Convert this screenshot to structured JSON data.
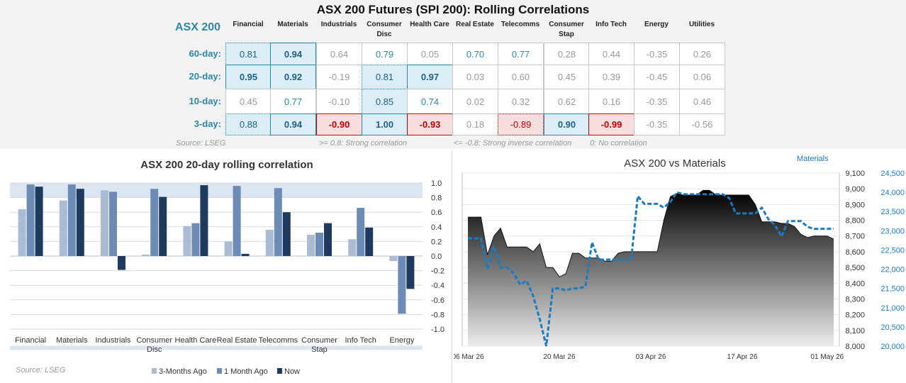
{
  "header": {
    "title": "ASX 200 Futures (SPI 200): Rolling Correlations",
    "index_label": "ASX 200",
    "columns": [
      {
        "line1": "Financial",
        "line2": ""
      },
      {
        "line1": "Materials",
        "line2": ""
      },
      {
        "line1": "Industrials",
        "line2": ""
      },
      {
        "line1": "Consumer",
        "line2": "Disc"
      },
      {
        "line1": "Health Care",
        "line2": ""
      },
      {
        "line1": "Real Estate",
        "line2": ""
      },
      {
        "line1": "Telecomms",
        "line2": ""
      },
      {
        "line1": "Consumer",
        "line2": "Stap"
      },
      {
        "line1": "Info Tech",
        "line2": ""
      },
      {
        "line1": "Energy",
        "line2": ""
      },
      {
        "line1": "Utilities",
        "line2": ""
      }
    ],
    "rows": [
      {
        "label": "60-day:",
        "values": [
          "0.81",
          "0.94",
          "0.64",
          "0.79",
          "0.05",
          "0.70",
          "0.77",
          "0.28",
          "0.44",
          "-0.35",
          "0.26"
        ]
      },
      {
        "label": "20-day:",
        "values": [
          "0.95",
          "0.92",
          "-0.19",
          "0.81",
          "0.97",
          "0.03",
          "0.60",
          "0.45",
          "0.39",
          "-0.45",
          "0.06"
        ]
      },
      {
        "label": "10-day:",
        "values": [
          "0.45",
          "0.77",
          "-0.10",
          "0.85",
          "0.74",
          "0.02",
          "0.32",
          "0.62",
          "0.16",
          "-0.35",
          "0.46"
        ]
      },
      {
        "label": "3-day:",
        "values": [
          "0.88",
          "0.94",
          "-0.90",
          "1.00",
          "-0.93",
          "0.18",
          "-0.89",
          "0.90",
          "-0.99",
          "-0.35",
          "-0.56"
        ]
      }
    ],
    "source": "Source: LSEG",
    "legend_strong": ">= 0.8:  Strong correlation",
    "legend_inverse": "<= -0.8:  Strong inverse correlation",
    "legend_none": "0:  No correlation",
    "colors": {
      "accent": "#2e86a8",
      "strong_fill": "#dbeef8",
      "inverse_fill": "#f8dede",
      "inverse_text": "#c00000"
    }
  },
  "chart_data": [
    {
      "type": "bar",
      "title": "ASX 200 20-day rolling correlation",
      "categories": [
        {
          "line1": "Financial",
          "line2": ""
        },
        {
          "line1": "Materials",
          "line2": ""
        },
        {
          "line1": "Industrials",
          "line2": ""
        },
        {
          "line1": "Consumer",
          "line2": "Disc"
        },
        {
          "line1": "Health Care",
          "line2": ""
        },
        {
          "line1": "Real Estate",
          "line2": ""
        },
        {
          "line1": "Telecomms",
          "line2": ""
        },
        {
          "line1": "Consumer",
          "line2": "Stap"
        },
        {
          "line1": "Info Tech",
          "line2": ""
        },
        {
          "line1": "Energy",
          "line2": ""
        }
      ],
      "series": [
        {
          "name": "3-Months Ago",
          "color": "#a9bcd3",
          "values": [
            0.64,
            0.76,
            0.9,
            0.02,
            0.41,
            0.2,
            0.36,
            0.29,
            0.23,
            -0.07
          ]
        },
        {
          "name": "1 Month Ago",
          "color": "#6c8cb5",
          "values": [
            0.98,
            0.98,
            0.88,
            0.92,
            0.45,
            0.96,
            0.93,
            0.32,
            0.66,
            -0.79
          ]
        },
        {
          "name": "Now",
          "color": "#1f3a5f",
          "values": [
            0.95,
            0.92,
            -0.19,
            0.81,
            0.97,
            0.03,
            0.6,
            0.45,
            0.39,
            -0.45
          ]
        }
      ],
      "ylim": [
        -1.0,
        1.0
      ],
      "yticks": [
        "1.0",
        "0.8",
        "0.6",
        "0.4",
        "0.2",
        "0.0",
        "-0.2",
        "-0.4",
        "-0.6",
        "-0.8",
        "-1.0"
      ],
      "source": "Source: LSEG",
      "legend": "bottom"
    },
    {
      "type": "area",
      "title": "ASX 200 vs Materials",
      "series_label": "Materials",
      "x_ticks": [
        "06 Mar 26",
        "20 Mar 26",
        "03 Apr 26",
        "17 Apr 26",
        "01 May 26"
      ],
      "left_axis": {
        "range": [
          8000,
          9100
        ],
        "ticks": [
          "9,100",
          "9,000",
          "8,900",
          "8,800",
          "8,700",
          "8,600",
          "8,500",
          "8,400",
          "8,300",
          "8,200",
          "8,100",
          "8,000"
        ]
      },
      "right_axis": {
        "range": [
          20000,
          24500
        ],
        "ticks": [
          "24,500",
          "24,000",
          "23,500",
          "23,000",
          "22,500",
          "22,000",
          "21,500",
          "21,000",
          "20,500",
          "20,000"
        ]
      },
      "asx200": [
        8820,
        8820,
        8820,
        8580,
        8700,
        8750,
        8630,
        8630,
        8630,
        8630,
        8600,
        8650,
        8500,
        8500,
        8440,
        8460,
        8590,
        8590,
        8560,
        8560,
        8560,
        8540,
        8540,
        8590,
        8600,
        8600,
        8600,
        8600,
        8600,
        8600,
        8800,
        8950,
        8970,
        8960,
        8960,
        8960,
        8990,
        8990,
        8960,
        8960,
        8960,
        8960,
        8960,
        8960,
        8900,
        8790,
        8790,
        8790,
        8780,
        8780,
        8760,
        8710,
        8690,
        8700,
        8700,
        8700,
        8680
      ],
      "materials": [
        22800,
        22800,
        22800,
        22000,
        22600,
        22050,
        22050,
        21900,
        21600,
        21700,
        21300,
        20700,
        20000,
        21500,
        21500,
        21450,
        21500,
        21500,
        21550,
        22700,
        22250,
        22250,
        22250,
        22250,
        22250,
        22250,
        23900,
        23700,
        23700,
        23700,
        23600,
        23750,
        24000,
        23950,
        23950,
        23950,
        23950,
        23950,
        23950,
        23950,
        23850,
        23450,
        23450,
        23450,
        23450,
        23600,
        23300,
        23150,
        22850,
        23250,
        23250,
        23250,
        23100,
        23050,
        23050,
        23050,
        23050
      ]
    }
  ]
}
